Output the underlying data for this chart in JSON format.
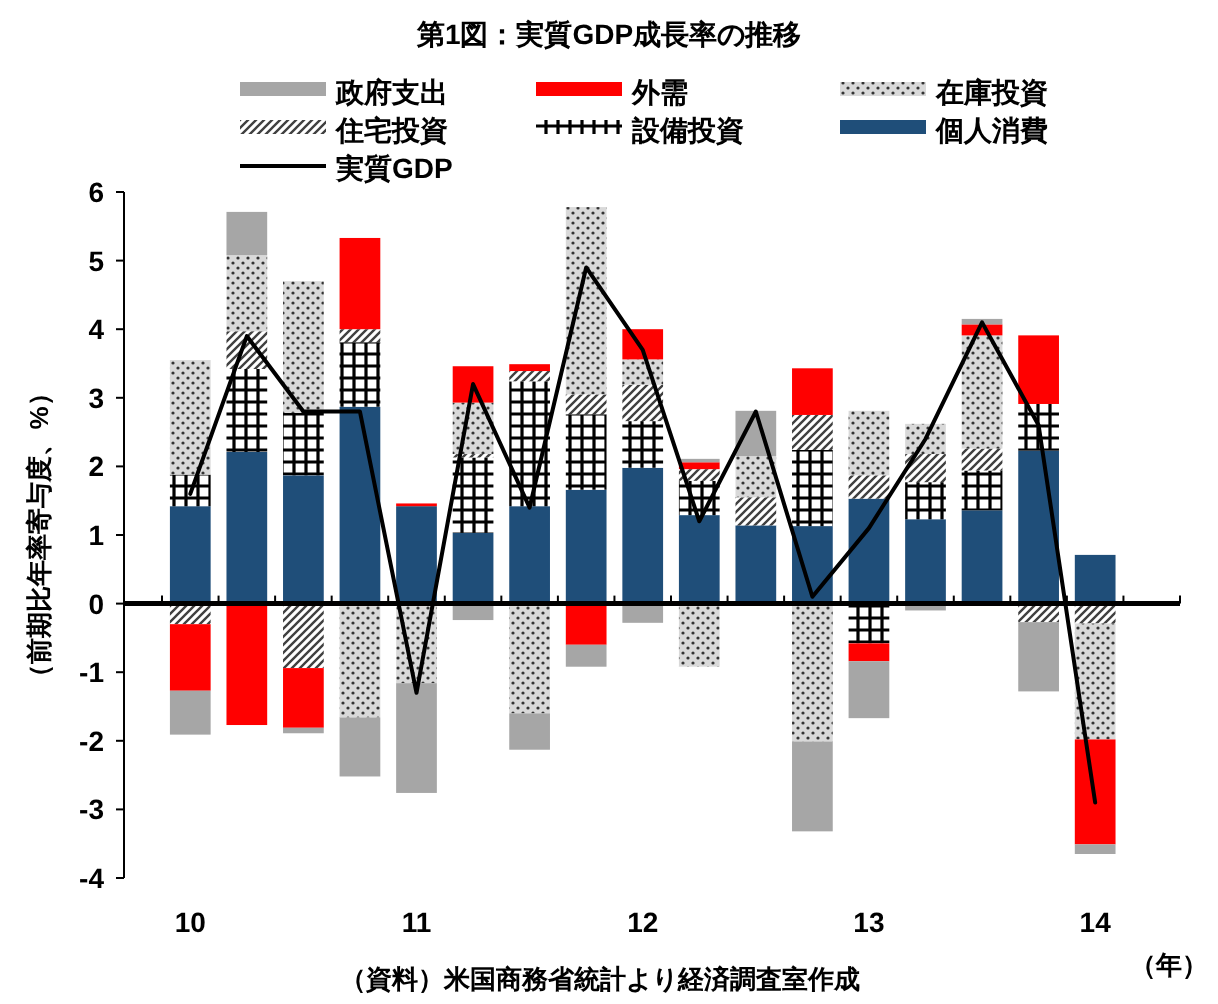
{
  "chart_data": {
    "type": "bar",
    "stacked": true,
    "title": "第1図：実質GDP成長率の推移",
    "ylabel": "（前期比年率寄与度、%）",
    "xlabel": "（年）",
    "annotations": [
      "（資料）米国商務省統計より経済調査室作成"
    ],
    "categories": [
      "10",
      null,
      null,
      null,
      "11",
      null,
      null,
      null,
      "12",
      null,
      null,
      null,
      "13",
      null,
      null,
      null,
      "14",
      null
    ],
    "ylim": [
      -4,
      6
    ],
    "yticks": [
      -4,
      -3,
      -2,
      -1,
      0,
      1,
      2,
      3,
      4,
      5,
      6
    ],
    "legend": "top",
    "series": [
      {
        "name": "個人消費",
        "color": "#1f4e79",
        "values": [
          1.42,
          2.21,
          1.87,
          2.87,
          1.42,
          1.03,
          1.42,
          1.66,
          1.98,
          1.29,
          1.14,
          1.13,
          1.53,
          1.23,
          1.36,
          2.23,
          0.71,
          null
        ]
      },
      {
        "name": "設備投資",
        "color": "#000000",
        "values": [
          0.46,
          1.21,
          0.91,
          0.94,
          null,
          1.1,
          1.82,
          1.1,
          0.68,
          0.5,
          null,
          1.11,
          -0.58,
          0.54,
          0.58,
          0.68,
          null,
          null
        ]
      },
      {
        "name": "住宅投資",
        "color": "#404040",
        "values": [
          -0.3,
          0.55,
          -0.94,
          0.19,
          null,
          0.05,
          0.15,
          0.29,
          0.53,
          0.17,
          0.41,
          0.51,
          0.34,
          0.41,
          0.32,
          -0.27,
          -0.29,
          null
        ]
      },
      {
        "name": "在庫投資",
        "color": "#d9d9d9",
        "values": [
          1.67,
          1.11,
          1.92,
          -1.66,
          -1.16,
          0.75,
          -1.6,
          2.73,
          0.37,
          -0.92,
          0.6,
          -2.01,
          0.94,
          0.44,
          1.65,
          null,
          -1.69,
          null
        ]
      },
      {
        "name": "外需",
        "color": "#ff0000",
        "values": [
          -0.97,
          -1.77,
          -0.87,
          1.33,
          0.04,
          0.53,
          0.1,
          -0.6,
          0.44,
          0.1,
          null,
          0.68,
          -0.26,
          null,
          0.16,
          1.0,
          -1.53,
          null
        ]
      },
      {
        "name": "政府支出",
        "color": "#a6a6a6",
        "values": [
          -0.64,
          0.63,
          -0.08,
          -0.86,
          -1.6,
          -0.24,
          -0.53,
          -0.32,
          -0.28,
          0.05,
          0.66,
          -1.31,
          -0.83,
          -0.1,
          0.08,
          -1.01,
          -0.14,
          null
        ]
      },
      {
        "name": "実質GDP",
        "type": "line",
        "color": "#000000",
        "values": [
          1.6,
          3.9,
          2.8,
          2.8,
          -1.3,
          3.2,
          1.4,
          4.9,
          3.7,
          1.2,
          2.8,
          0.1,
          1.1,
          2.4,
          4.1,
          2.6,
          -2.9,
          null
        ]
      }
    ]
  }
}
